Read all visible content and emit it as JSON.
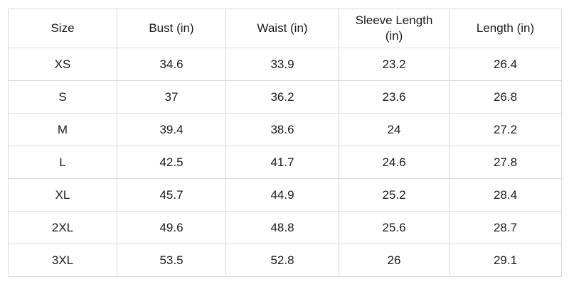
{
  "colors": {
    "border": "#d9d9d9",
    "text": "#1a1a1a",
    "background": "#ffffff"
  },
  "chart_data": {
    "type": "table",
    "columns": [
      "Size",
      "Bust (in)",
      "Waist (in)",
      "Sleeve Length (in)",
      "Length (in)"
    ],
    "rows": [
      [
        "XS",
        "34.6",
        "33.9",
        "23.2",
        "26.4"
      ],
      [
        "S",
        "37",
        "36.2",
        "23.6",
        "26.8"
      ],
      [
        "M",
        "39.4",
        "38.6",
        "24",
        "27.2"
      ],
      [
        "L",
        "42.5",
        "41.7",
        "24.6",
        "27.8"
      ],
      [
        "XL",
        "45.7",
        "44.9",
        "25.2",
        "28.4"
      ],
      [
        "2XL",
        "49.6",
        "48.8",
        "25.6",
        "28.7"
      ],
      [
        "3XL",
        "53.5",
        "52.8",
        "26",
        "29.1"
      ]
    ]
  }
}
